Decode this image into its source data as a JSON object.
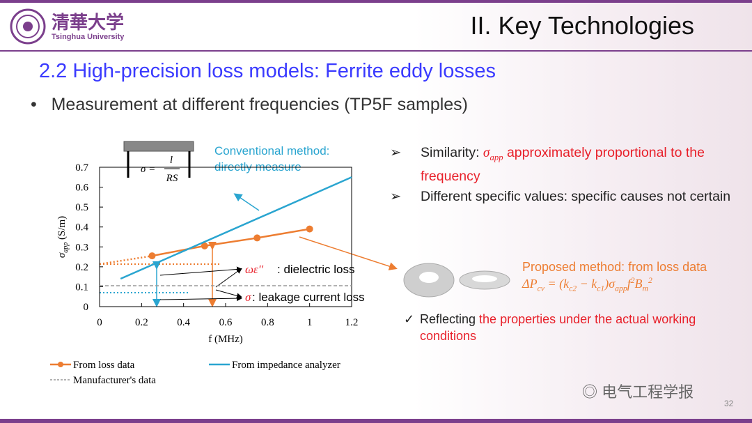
{
  "header": {
    "logo_text": "清華大学",
    "university": "Tsinghua University",
    "title": "II. Key Technologies"
  },
  "subtitle": "2.2 High-precision loss models: Ferrite eddy losses",
  "bullet": "Measurement at different frequencies (TP5F samples)",
  "notes": [
    {
      "parts": [
        "Similarity: ",
        "σ",
        "app",
        " approximately proportional to the frequency"
      ]
    },
    {
      "parts": [
        "Different specific values: specific causes not certain"
      ]
    }
  ],
  "proposed": {
    "label": "Proposed method: from loss data",
    "formula": [
      "ΔP",
      "cv",
      " = (k",
      "c2",
      " − k",
      "c1",
      ")σ",
      "app",
      "f",
      "2",
      "B",
      "m",
      "2"
    ]
  },
  "check": [
    "Reflecting ",
    "the properties under the actual working conditions"
  ],
  "watermark": "电气工程学报",
  "page_number": "32",
  "chart_data": {
    "type": "line",
    "x_label": "f (MHz)",
    "y_label": [
      "σ",
      "app",
      " (S/m)"
    ],
    "xlim": [
      0,
      1.2
    ],
    "xticks": [
      0,
      0.2,
      0.4,
      0.6,
      0.8,
      1,
      1.2
    ],
    "ylim": [
      0,
      0.7
    ],
    "yticks": [
      0,
      0.1,
      0.2,
      0.3,
      0.4,
      0.5,
      0.6,
      0.7
    ],
    "series": [
      {
        "name": "From loss data",
        "color": "#ed7d31",
        "markers": true,
        "x": [
          0.25,
          0.5,
          0.75,
          1
        ],
        "values": [
          0.255,
          0.305,
          0.345,
          0.39
        ]
      },
      {
        "name": "From impedance analyzer",
        "color": "#2aa5d0",
        "markers": false,
        "x": [
          0.1,
          1.2
        ],
        "values": [
          0.14,
          0.65
        ]
      },
      {
        "name": "Manufacturer's data",
        "color": "#999999",
        "markers": false,
        "dashed": true,
        "x": [
          0,
          1.2
        ],
        "values": [
          0.105,
          0.105
        ]
      }
    ],
    "annotations": {
      "conventional": [
        "Conventional method:",
        "directly measure"
      ],
      "formula": [
        "σ = ",
        "l",
        "RS"
      ],
      "dielectric": [
        "ωε''",
        ": dielectric loss"
      ],
      "leakage": [
        "σ",
        ": leakage current loss"
      ]
    }
  }
}
